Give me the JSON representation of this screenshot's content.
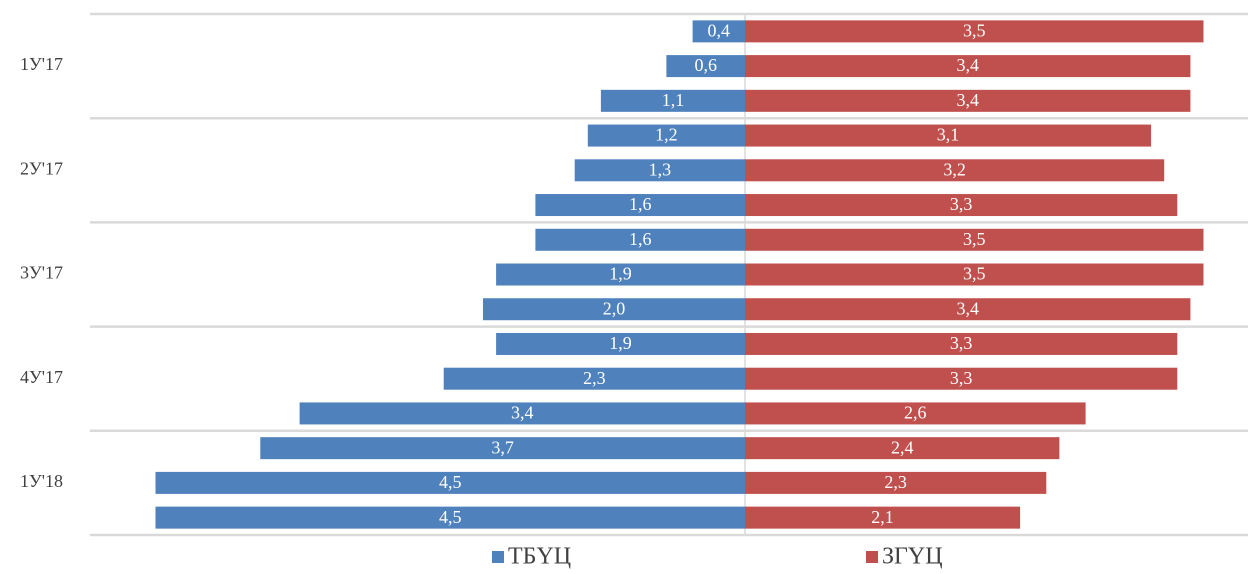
{
  "chart_data": {
    "type": "butterfly_bar",
    "categories": [
      null,
      "1У'17",
      null,
      null,
      "2У'17",
      null,
      null,
      "3У'17",
      null,
      null,
      "4У'17",
      null,
      null,
      "1У'18",
      null
    ],
    "series": [
      {
        "name": "ТБҮЦ",
        "color": "#4f81bd",
        "values": [
          0.4,
          0.6,
          1.1,
          1.2,
          1.3,
          1.6,
          1.6,
          1.9,
          2.0,
          1.9,
          2.3,
          3.4,
          3.7,
          4.5,
          4.5
        ],
        "value_labels": [
          "0,4",
          "0,6",
          "1,1",
          "1,2",
          "1,3",
          "1,6",
          "1,6",
          "1,9",
          "2,0",
          "1,9",
          "2,3",
          "3,4",
          "3,7",
          "4,5",
          "4,5"
        ]
      },
      {
        "name": "ЗГҮЦ",
        "color": "#c0504d",
        "values": [
          3.5,
          3.4,
          3.4,
          3.1,
          3.2,
          3.3,
          3.5,
          3.5,
          3.4,
          3.3,
          3.3,
          2.6,
          2.4,
          2.3,
          2.1
        ],
        "value_labels": [
          "3,5",
          "3,4",
          "3,4",
          "3,1",
          "3,2",
          "3,3",
          "3,5",
          "3,5",
          "3,4",
          "3,3",
          "3,3",
          "2,6",
          "2,4",
          "2,3",
          "2,1"
        ]
      }
    ],
    "legend": "bottom"
  }
}
